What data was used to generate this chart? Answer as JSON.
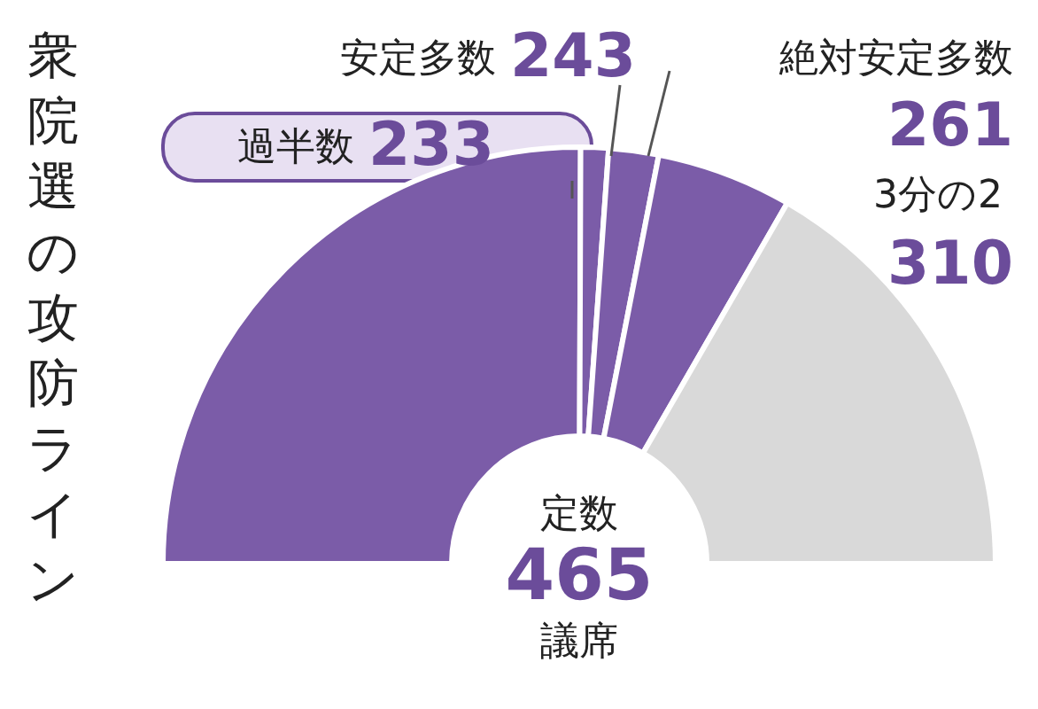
{
  "chart_data": {
    "type": "other",
    "title": "衆院選の攻防ライン",
    "categories": [
      "過半数",
      "安定多数",
      "絶対安定多数",
      "3分の2",
      "定数"
    ],
    "values": [
      233,
      243,
      261,
      310,
      465
    ],
    "colors": [
      "#7b5ca8",
      "#7b5ca8",
      "#7b5ca8",
      "#7b5ca8",
      "#d9d9d9"
    ],
    "data_labels": true,
    "annotations": [
      "議席"
    ]
  }
}
